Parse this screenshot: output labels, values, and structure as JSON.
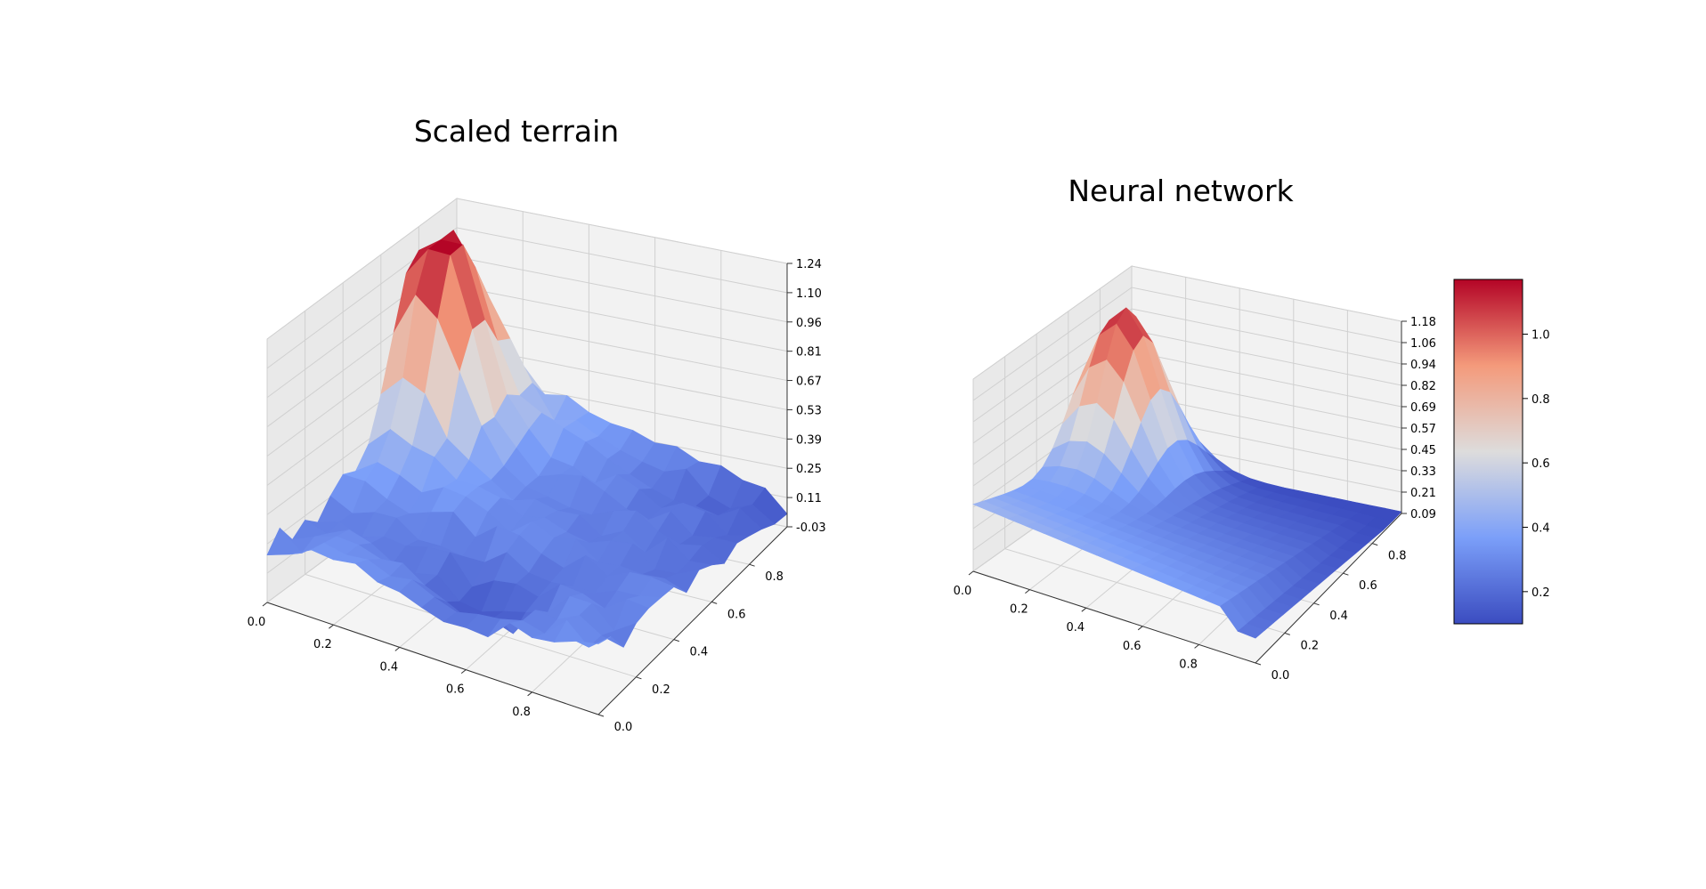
{
  "figure": {
    "colormap": "coolwarm",
    "colors": {
      "low": "#3b4cc0",
      "mid": "#dddcdc",
      "high": "#b40426",
      "pane": "#f2f2f2",
      "grid": "#cfcfcf"
    }
  },
  "chart_data": [
    {
      "type": "surface3d",
      "title": "Scaled terrain",
      "xlabel": "",
      "ylabel": "",
      "zlabel": "",
      "x_ticks": [
        "0.0",
        "0.2",
        "0.4",
        "0.6",
        "0.8"
      ],
      "y_ticks": [
        "0.0",
        "0.2",
        "0.4",
        "0.6",
        "0.8"
      ],
      "z_ticks": [
        "-0.03",
        "0.11",
        "0.25",
        "0.39",
        "0.53",
        "0.67",
        "0.81",
        "0.96",
        "1.10",
        "1.24"
      ],
      "xlim": [
        0,
        1
      ],
      "ylim": [
        0,
        1
      ],
      "zlim": [
        -0.03,
        1.24
      ],
      "grid": true,
      "surface_summary": {
        "peak_z": 1.2,
        "peak_location": [
          0.05,
          0.75
        ],
        "min_z": 0.02,
        "description_values": {
          "high_corner_z": 0.9,
          "valley_z": 0.35,
          "far_edge_z": 0.1
        }
      }
    },
    {
      "type": "surface3d",
      "title": "Neural network",
      "xlabel": "",
      "ylabel": "",
      "zlabel": "",
      "x_ticks": [
        "0.0",
        "0.2",
        "0.4",
        "0.6",
        "0.8"
      ],
      "y_ticks": [
        "0.0",
        "0.2",
        "0.4",
        "0.6",
        "0.8"
      ],
      "z_ticks": [
        "0.09",
        "0.21",
        "0.33",
        "0.45",
        "0.57",
        "0.69",
        "0.82",
        "0.94",
        "1.06",
        "1.18"
      ],
      "xlim": [
        0,
        1
      ],
      "ylim": [
        0,
        1
      ],
      "zlim": [
        0.09,
        1.18
      ],
      "grid": true,
      "surface_summary": {
        "peak_z": 1.15,
        "peak_location": [
          0.1,
          0.75
        ],
        "min_z": 0.1
      },
      "colorbar": {
        "ticks": [
          "0.2",
          "0.4",
          "0.6",
          "0.8",
          "1.0"
        ],
        "tick_values": [
          0.2,
          0.4,
          0.6,
          0.8,
          1.0
        ],
        "range": [
          0.1,
          1.17
        ]
      }
    }
  ]
}
